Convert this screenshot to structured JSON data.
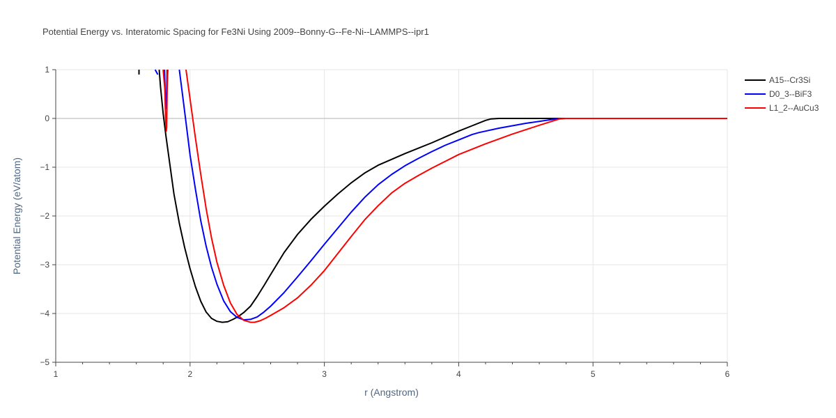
{
  "chart_data": {
    "type": "line",
    "title": "Potential Energy vs. Interatomic Spacing for Fe3Ni Using 2009--Bonny-G--Fe-Ni--LAMMPS--ipr1",
    "xlabel": "r (Angstrom)",
    "ylabel": "Potential Energy (eV/atom)",
    "xlim": [
      1,
      6
    ],
    "ylim": [
      -5,
      1
    ],
    "x_ticks": [
      1,
      2,
      3,
      4,
      5,
      6
    ],
    "x_tick_labels": [
      "1",
      "2",
      "3",
      "4",
      "5",
      "6"
    ],
    "y_ticks": [
      1,
      0,
      -1,
      -2,
      -3,
      -4,
      -5
    ],
    "y_tick_labels": [
      "1",
      "0",
      "−1",
      "−2",
      "−3",
      "−4",
      "−5"
    ],
    "grid": true,
    "legend_position": "top-right",
    "series": [
      {
        "name": "A15--Cr3Si",
        "color": "#000000",
        "segments": [
          {
            "x": [
              1.62,
              1.62
            ],
            "y": [
              1.0,
              0.9
            ]
          },
          {
            "x": [
              1.77,
              1.78,
              1.8,
              1.82,
              1.85,
              1.88,
              1.92,
              1.96,
              2.0,
              2.04,
              2.08,
              2.12,
              2.16,
              2.2,
              2.24,
              2.28,
              2.32,
              2.36,
              2.4,
              2.45,
              2.5,
              2.55,
              2.6,
              2.7,
              2.8,
              2.9,
              3.0,
              3.1,
              3.2,
              3.3,
              3.4,
              3.5,
              3.6,
              3.7,
              3.8,
              3.9,
              4.0,
              4.1,
              4.2,
              4.24,
              4.3,
              4.4,
              4.6,
              4.8,
              5.0,
              5.5,
              6.0
            ],
            "y": [
              1.0,
              0.65,
              0.1,
              -0.35,
              -0.95,
              -1.55,
              -2.15,
              -2.65,
              -3.08,
              -3.45,
              -3.75,
              -3.97,
              -4.1,
              -4.16,
              -4.18,
              -4.17,
              -4.12,
              -4.06,
              -3.98,
              -3.85,
              -3.65,
              -3.43,
              -3.2,
              -2.75,
              -2.38,
              -2.07,
              -1.8,
              -1.55,
              -1.32,
              -1.12,
              -0.96,
              -0.84,
              -0.72,
              -0.61,
              -0.5,
              -0.38,
              -0.26,
              -0.15,
              -0.04,
              -0.01,
              0.0,
              0.0,
              0.0,
              0.0,
              0.0,
              0.0,
              0.0
            ]
          }
        ]
      },
      {
        "name": "D0_3--BiF3",
        "color": "#0000ff",
        "segments": [
          {
            "x": [
              1.74,
              1.76
            ],
            "y": [
              1.0,
              0.9
            ]
          },
          {
            "x": [
              1.81,
              1.815,
              1.822,
              1.83
            ],
            "y": [
              1.0,
              0.5,
              0.2,
              1.0
            ]
          },
          {
            "x": [
              1.92,
              1.95,
              1.98,
              2.0,
              2.04,
              2.08,
              2.12,
              2.16,
              2.2,
              2.25,
              2.3,
              2.35,
              2.4,
              2.45,
              2.5,
              2.55,
              2.6,
              2.7,
              2.8,
              2.9,
              3.0,
              3.1,
              3.2,
              3.3,
              3.4,
              3.5,
              3.6,
              3.7,
              3.8,
              3.9,
              4.0,
              4.1,
              4.15,
              4.3,
              4.5,
              4.7,
              4.75,
              4.8,
              5.0,
              5.5,
              6.0
            ],
            "y": [
              1.0,
              0.35,
              -0.3,
              -0.75,
              -1.45,
              -2.1,
              -2.62,
              -3.05,
              -3.4,
              -3.74,
              -3.96,
              -4.08,
              -4.13,
              -4.12,
              -4.07,
              -3.97,
              -3.85,
              -3.57,
              -3.25,
              -2.92,
              -2.58,
              -2.25,
              -1.92,
              -1.62,
              -1.36,
              -1.15,
              -0.97,
              -0.82,
              -0.68,
              -0.55,
              -0.44,
              -0.33,
              -0.29,
              -0.2,
              -0.1,
              -0.02,
              0.0,
              0.0,
              0.0,
              0.0,
              0.0
            ]
          }
        ]
      },
      {
        "name": "L1_2--AuCu3",
        "color": "#ff0000",
        "segments": [
          {
            "x": [
              1.8,
              1.812,
              1.818,
              1.823,
              1.826,
              1.828,
              1.83,
              1.833,
              1.835
            ],
            "y": [
              1.0,
              0.6,
              0.0,
              -0.26,
              -0.18,
              0.2,
              0.6,
              0.9,
              1.0
            ]
          },
          {
            "x": [
              1.97,
              2.0,
              2.04,
              2.08,
              2.12,
              2.16,
              2.2,
              2.25,
              2.3,
              2.35,
              2.4,
              2.45,
              2.48,
              2.52,
              2.56,
              2.6,
              2.7,
              2.8,
              2.9,
              3.0,
              3.1,
              3.2,
              3.3,
              3.4,
              3.5,
              3.6,
              3.7,
              3.8,
              3.9,
              4.0,
              4.2,
              4.4,
              4.6,
              4.75,
              4.8,
              5.0,
              5.5,
              6.0
            ],
            "y": [
              1.0,
              0.4,
              -0.4,
              -1.15,
              -1.85,
              -2.45,
              -2.95,
              -3.42,
              -3.78,
              -4.02,
              -4.14,
              -4.18,
              -4.18,
              -4.15,
              -4.1,
              -4.04,
              -3.88,
              -3.68,
              -3.42,
              -3.12,
              -2.77,
              -2.42,
              -2.08,
              -1.79,
              -1.53,
              -1.33,
              -1.17,
              -1.02,
              -0.88,
              -0.74,
              -0.52,
              -0.32,
              -0.14,
              -0.01,
              0.0,
              0.0,
              0.0,
              0.0
            ]
          }
        ]
      }
    ]
  }
}
